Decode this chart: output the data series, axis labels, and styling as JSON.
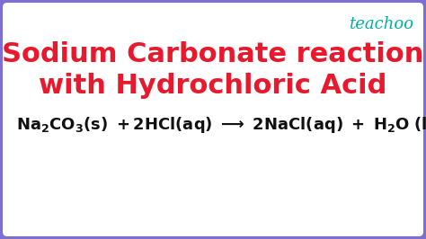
{
  "bg_color": "#ffffff",
  "outer_bg_color": "#7b6fd4",
  "border_color": "#7b6fd4",
  "border_linewidth": 10,
  "title_line1": "Sodium Carbonate reaction",
  "title_line2": "with Hydrochloric Acid",
  "title_color": "#e8192c",
  "title_fontsize": 22,
  "title_fontweight": "bold",
  "teachoo_text": "teachoo",
  "teachoo_color": "#00b0a0",
  "teachoo_fontsize": 13,
  "equation_fontsize": 13,
  "equation_color": "#111111",
  "figsize": [
    4.74,
    2.66
  ],
  "dpi": 100
}
